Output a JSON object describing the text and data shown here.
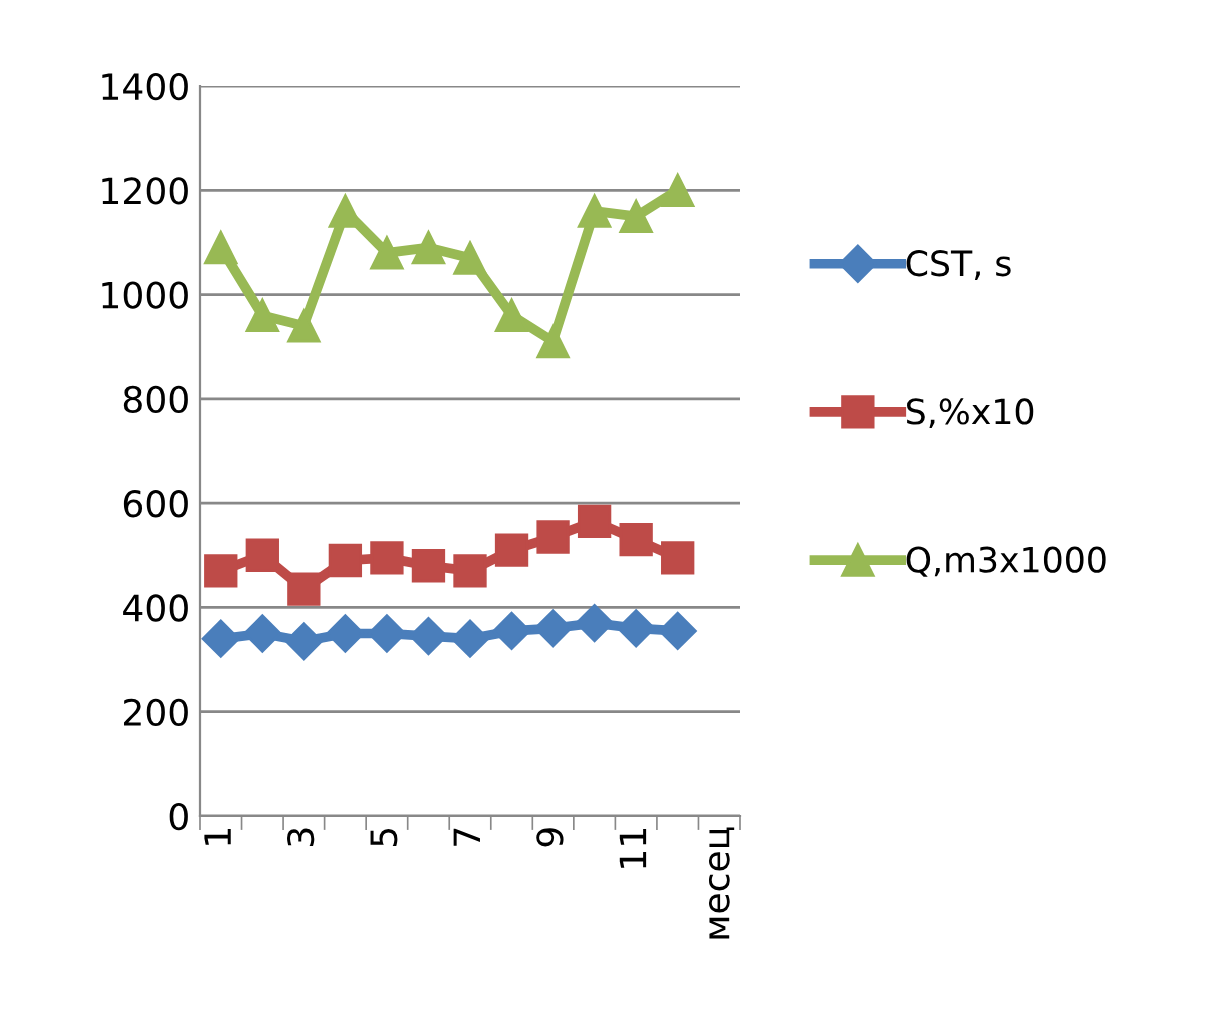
{
  "chart_data": {
    "type": "line",
    "categories": [
      "1",
      null,
      "3",
      null,
      "5",
      null,
      "7",
      null,
      "9",
      null,
      "11",
      null,
      "месец"
    ],
    "series": [
      {
        "name": "CST, s",
        "color": "#4a7ebb",
        "marker": "diamond",
        "values": [
          340,
          350,
          335,
          350,
          350,
          345,
          340,
          355,
          360,
          370,
          360,
          355,
          null
        ]
      },
      {
        "name": "S,%x10",
        "color": "#be4b48",
        "marker": "square",
        "values": [
          470,
          500,
          435,
          490,
          495,
          480,
          470,
          510,
          535,
          565,
          530,
          495,
          null
        ]
      },
      {
        "name": "Q,m3x1000",
        "color": "#98b954",
        "marker": "triangle",
        "values": [
          1090,
          960,
          940,
          1160,
          1080,
          1090,
          1070,
          960,
          910,
          1160,
          1150,
          1200,
          null
        ]
      }
    ],
    "ylim": [
      0,
      1400
    ],
    "yticks": [
      0,
      200,
      400,
      600,
      800,
      1000,
      1200,
      1400
    ],
    "grid": "y",
    "legend": "right"
  }
}
